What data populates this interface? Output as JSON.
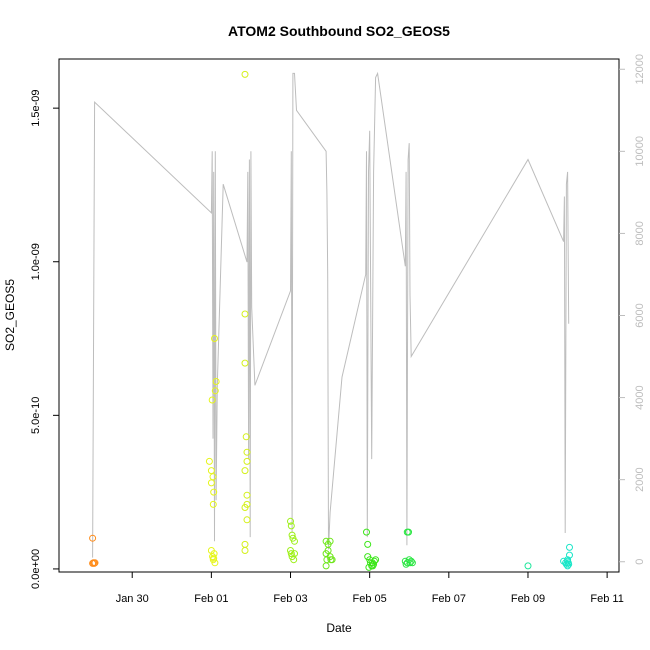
{
  "chart_data": {
    "type": "scatter",
    "title": "ATOM2 Southbound SO2_GEOS5",
    "xlabel": "Date",
    "ylabel": "SO2_GEOS5",
    "x_axis": {
      "range_days_since_jan29": [
        -0.85,
        13.3
      ],
      "ticks": [
        {
          "label": "Jan 30",
          "day": 1
        },
        {
          "label": "Feb 01",
          "day": 3
        },
        {
          "label": "Feb 03",
          "day": 5
        },
        {
          "label": "Feb 05",
          "day": 7
        },
        {
          "label": "Feb 07",
          "day": 9
        },
        {
          "label": "Feb 09",
          "day": 11
        },
        {
          "label": "Feb 11",
          "day": 13
        }
      ]
    },
    "y_axis": {
      "range": [
        -1e-11,
        1.66e-09
      ],
      "ticks": [
        {
          "label": "0.0e+00",
          "value": 0
        },
        {
          "label": "5.0e-10",
          "value": 5e-10
        },
        {
          "label": "1.0e-09",
          "value": 1e-09
        },
        {
          "label": "1.5e-09",
          "value": 1.5e-09
        }
      ]
    },
    "y2_axis": {
      "label": "",
      "range": [
        -250,
        12250
      ],
      "color": "#bdbdbd",
      "ticks": [
        {
          "label": "0",
          "value": 0
        },
        {
          "label": "2000",
          "value": 2000
        },
        {
          "label": "4000",
          "value": 4000
        },
        {
          "label": "6000",
          "value": 6000
        },
        {
          "label": "8000",
          "value": 8000
        },
        {
          "label": "10000",
          "value": 10000
        },
        {
          "label": "12000",
          "value": 12000
        }
      ]
    },
    "grid": false,
    "legend": "none",
    "altitude_line": {
      "color": "#bdbdbd",
      "points": [
        [
          0.0,
          100
        ],
        [
          0.05,
          11200
        ],
        [
          3.0,
          8500
        ],
        [
          3.02,
          10000
        ],
        [
          3.04,
          3000
        ],
        [
          3.06,
          9500
        ],
        [
          3.08,
          500
        ],
        [
          3.1,
          10000
        ],
        [
          3.12,
          1500
        ],
        [
          3.15,
          4300
        ],
        [
          3.3,
          9200
        ],
        [
          3.9,
          7300
        ],
        [
          3.92,
          9500
        ],
        [
          3.94,
          2500
        ],
        [
          3.96,
          9800
        ],
        [
          3.98,
          600
        ],
        [
          4.0,
          10000
        ],
        [
          4.02,
          6200
        ],
        [
          4.1,
          4300
        ],
        [
          5.0,
          6600
        ],
        [
          5.02,
          10000
        ],
        [
          5.04,
          700
        ],
        [
          5.06,
          11900
        ],
        [
          5.1,
          11900
        ],
        [
          5.15,
          11000
        ],
        [
          5.9,
          10000
        ],
        [
          5.92,
          9000
        ],
        [
          5.94,
          7000
        ],
        [
          5.96,
          300
        ],
        [
          6.0,
          1200
        ],
        [
          6.3,
          4500
        ],
        [
          6.9,
          7000
        ],
        [
          6.92,
          10000
        ],
        [
          6.94,
          600
        ],
        [
          6.97,
          9500
        ],
        [
          7.0,
          10500
        ],
        [
          7.05,
          2500
        ],
        [
          7.1,
          9500
        ],
        [
          7.15,
          11800
        ],
        [
          7.2,
          11900
        ],
        [
          7.9,
          7200
        ],
        [
          7.92,
          9500
        ],
        [
          7.94,
          400
        ],
        [
          7.97,
          9800
        ],
        [
          8.0,
          10200
        ],
        [
          8.02,
          6500
        ],
        [
          8.05,
          5000
        ],
        [
          11.0,
          9800
        ],
        [
          11.9,
          7800
        ],
        [
          11.92,
          8900
        ],
        [
          11.94,
          700
        ],
        [
          11.97,
          9200
        ],
        [
          12.0,
          9500
        ],
        [
          12.03,
          5800
        ]
      ]
    },
    "series": [
      {
        "color": "#ff8c1a",
        "points": [
          [
            0.0,
            1e-10
          ],
          [
            0.0,
            1.8e-11
          ],
          [
            0.02,
            2e-11
          ],
          [
            0.04,
            1.8e-11
          ],
          [
            0.06,
            2e-11
          ]
        ]
      },
      {
        "color": "#e6f51a",
        "points": [
          [
            2.95,
            3.5e-10
          ],
          [
            3.0,
            3.2e-10
          ],
          [
            3.0,
            2.8e-10
          ],
          [
            3.02,
            5.5e-10
          ],
          [
            3.04,
            3e-10
          ],
          [
            3.06,
            2.5e-10
          ],
          [
            3.05,
            2.1e-10
          ],
          [
            3.08,
            7.5e-10
          ],
          [
            3.1,
            5.8e-10
          ],
          [
            3.12,
            6.1e-10
          ],
          [
            3.0,
            6e-11
          ],
          [
            3.03,
            4e-11
          ],
          [
            3.05,
            3e-11
          ],
          [
            3.07,
            5e-11
          ],
          [
            3.09,
            2e-11
          ],
          [
            3.06,
            3.5e-11
          ]
        ]
      },
      {
        "color": "#d4f01a",
        "points": [
          [
            3.85,
            1.61e-09
          ],
          [
            3.85,
            8.3e-10
          ],
          [
            3.85,
            6.7e-10
          ],
          [
            3.88,
            4.3e-10
          ],
          [
            3.9,
            3.8e-10
          ],
          [
            3.9,
            3.5e-10
          ],
          [
            3.85,
            3.2e-10
          ],
          [
            3.9,
            2.4e-10
          ],
          [
            3.85,
            2e-10
          ],
          [
            3.9,
            2.1e-10
          ],
          [
            3.9,
            1.6e-10
          ],
          [
            3.85,
            8e-11
          ],
          [
            3.85,
            6e-11
          ]
        ]
      },
      {
        "color": "#9ef01a",
        "points": [
          [
            5.0,
            1.55e-10
          ],
          [
            5.02,
            1.4e-10
          ],
          [
            5.04,
            1.1e-10
          ],
          [
            5.06,
            1e-10
          ],
          [
            5.1,
            9e-11
          ],
          [
            5.0,
            6e-11
          ],
          [
            5.02,
            5e-11
          ],
          [
            5.04,
            4e-11
          ],
          [
            5.08,
            3e-11
          ],
          [
            5.1,
            5e-11
          ]
        ]
      },
      {
        "color": "#6ee61a",
        "points": [
          [
            5.9,
            9e-11
          ],
          [
            5.95,
            8e-11
          ],
          [
            6.0,
            9e-11
          ],
          [
            5.9,
            5e-11
          ],
          [
            5.95,
            6e-11
          ],
          [
            6.0,
            4e-11
          ],
          [
            6.02,
            3e-11
          ],
          [
            5.92,
            3e-11
          ],
          [
            5.9,
            1e-11
          ],
          [
            6.05,
            3e-11
          ]
        ]
      },
      {
        "color": "#3ce61a",
        "points": [
          [
            6.92,
            1.2e-10
          ],
          [
            6.95,
            8e-11
          ],
          [
            6.95,
            4e-11
          ],
          [
            7.0,
            3e-11
          ],
          [
            7.02,
            2e-11
          ],
          [
            7.05,
            1e-11
          ],
          [
            7.07,
            2e-11
          ],
          [
            7.1,
            1.5e-11
          ],
          [
            7.12,
            2.5e-11
          ],
          [
            6.98,
            5e-12
          ],
          [
            7.15,
            3e-11
          ],
          [
            7.08,
            1e-11
          ]
        ]
      },
      {
        "color": "#28e640",
        "points": [
          [
            7.95,
            1.2e-10
          ],
          [
            7.98,
            1.2e-10
          ],
          [
            7.9,
            2.5e-11
          ],
          [
            7.95,
            2e-11
          ],
          [
            8.0,
            3e-11
          ],
          [
            8.02,
            2e-11
          ],
          [
            8.05,
            2.5e-11
          ],
          [
            8.08,
            2e-11
          ],
          [
            7.92,
            1.5e-11
          ]
        ]
      },
      {
        "color": "#1ae69a",
        "points": [
          [
            11.0,
            1e-11
          ]
        ]
      },
      {
        "color": "#1ae6c8",
        "points": [
          [
            11.9,
            2.5e-11
          ],
          [
            11.95,
            2e-11
          ],
          [
            12.0,
            3e-11
          ],
          [
            12.02,
            2e-11
          ],
          [
            12.05,
            7e-11
          ],
          [
            12.05,
            4.5e-11
          ],
          [
            12.0,
            1e-11
          ],
          [
            11.97,
            1.5e-11
          ],
          [
            12.03,
            1.5e-11
          ],
          [
            12.0,
            2.5e-11
          ]
        ]
      }
    ]
  }
}
